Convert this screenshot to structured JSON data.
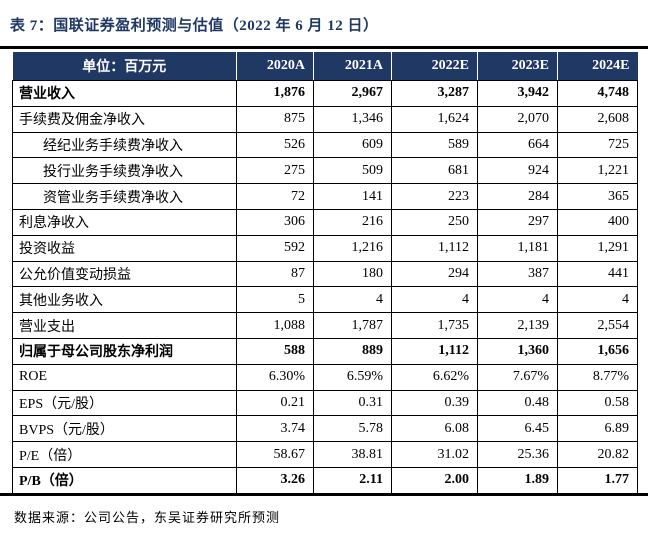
{
  "title": "表 7：国联证券盈利预测与估值（2022 年 6 月 12 日）",
  "source_note": "数据来源：公司公告，东吴证券研究所预测",
  "colors": {
    "accent_navy": "#1F3864",
    "header_text": "#FFFFFF",
    "body_text": "#000000"
  },
  "table": {
    "unit_label": "单位：百万元",
    "year_columns": [
      "2020A",
      "2021A",
      "2022E",
      "2023E",
      "2024E"
    ],
    "rows": [
      {
        "label": "营业收入",
        "bold": true,
        "indent": false,
        "values": [
          "1,876",
          "2,967",
          "3,287",
          "3,942",
          "4,748"
        ]
      },
      {
        "label": "手续费及佣金净收入",
        "bold": false,
        "indent": false,
        "values": [
          "875",
          "1,346",
          "1,624",
          "2,070",
          "2,608"
        ]
      },
      {
        "label": "经纪业务手续费净收入",
        "bold": false,
        "indent": true,
        "values": [
          "526",
          "609",
          "589",
          "664",
          "725"
        ]
      },
      {
        "label": "投行业务手续费净收入",
        "bold": false,
        "indent": true,
        "values": [
          "275",
          "509",
          "681",
          "924",
          "1,221"
        ]
      },
      {
        "label": "资管业务手续费净收入",
        "bold": false,
        "indent": true,
        "values": [
          "72",
          "141",
          "223",
          "284",
          "365"
        ]
      },
      {
        "label": "利息净收入",
        "bold": false,
        "indent": false,
        "values": [
          "306",
          "216",
          "250",
          "297",
          "400"
        ]
      },
      {
        "label": "投资收益",
        "bold": false,
        "indent": false,
        "values": [
          "592",
          "1,216",
          "1,112",
          "1,181",
          "1,291"
        ]
      },
      {
        "label": "公允价值变动损益",
        "bold": false,
        "indent": false,
        "values": [
          "87",
          "180",
          "294",
          "387",
          "441"
        ]
      },
      {
        "label": "其他业务收入",
        "bold": false,
        "indent": false,
        "values": [
          "5",
          "4",
          "4",
          "4",
          "4"
        ]
      },
      {
        "label": "营业支出",
        "bold": false,
        "indent": false,
        "values": [
          "1,088",
          "1,787",
          "1,735",
          "2,139",
          "2,554"
        ]
      },
      {
        "label": "归属于母公司股东净利润",
        "bold": true,
        "indent": false,
        "values": [
          "588",
          "889",
          "1,112",
          "1,360",
          "1,656"
        ]
      },
      {
        "label": "ROE",
        "bold": false,
        "indent": false,
        "values": [
          "6.30%",
          "6.59%",
          "6.62%",
          "7.67%",
          "8.77%"
        ]
      },
      {
        "label": "EPS（元/股）",
        "bold": false,
        "indent": false,
        "values": [
          "0.21",
          "0.31",
          "0.39",
          "0.48",
          "0.58"
        ]
      },
      {
        "label": "BVPS（元/股）",
        "bold": false,
        "indent": false,
        "values": [
          "3.74",
          "5.78",
          "6.08",
          "6.45",
          "6.89"
        ]
      },
      {
        "label": "P/E（倍）",
        "bold": false,
        "indent": false,
        "values": [
          "58.67",
          "38.81",
          "31.02",
          "25.36",
          "20.82"
        ]
      },
      {
        "label": "P/B（倍）",
        "bold": true,
        "indent": false,
        "values": [
          "3.26",
          "2.11",
          "2.00",
          "1.89",
          "1.77"
        ]
      }
    ]
  }
}
